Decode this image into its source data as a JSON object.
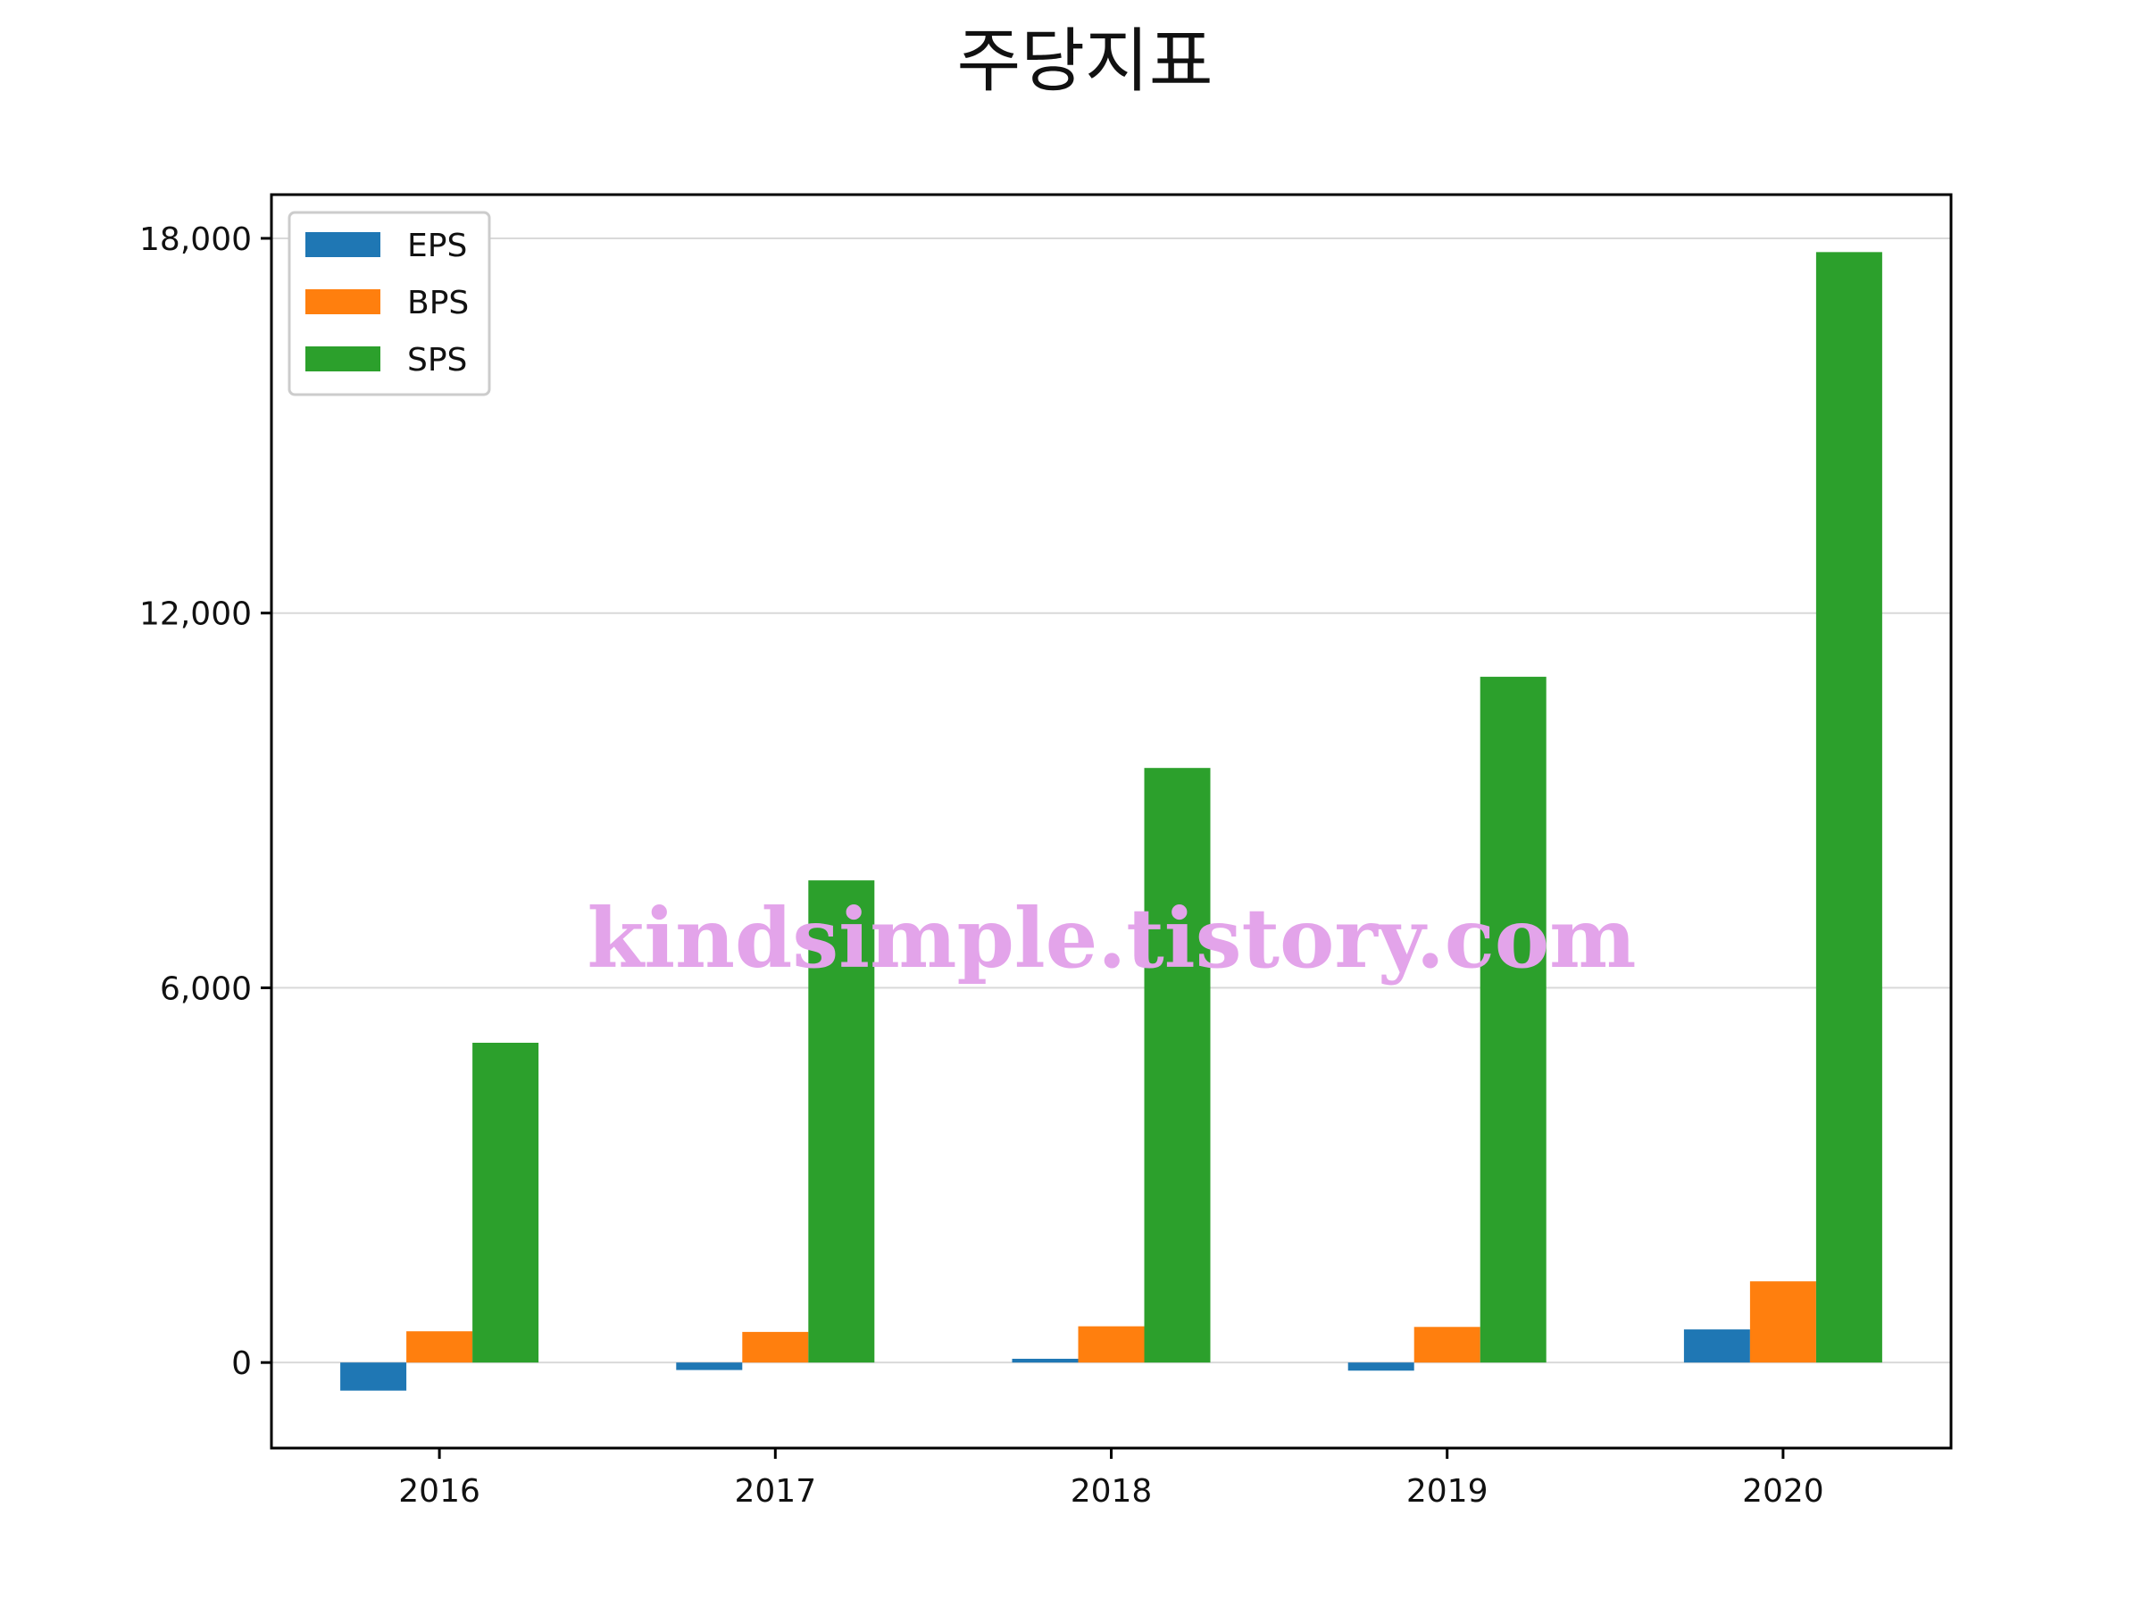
{
  "chart_data": {
    "type": "bar",
    "title": "주당지표",
    "categories": [
      "2016",
      "2017",
      "2018",
      "2019",
      "2020"
    ],
    "series": [
      {
        "name": "EPS",
        "color": "#1f77b4",
        "values": [
          -450,
          -120,
          60,
          -130,
          530
        ]
      },
      {
        "name": "BPS",
        "color": "#ff7f0e",
        "values": [
          500,
          490,
          580,
          570,
          1300
        ]
      },
      {
        "name": "SPS",
        "color": "#2ca02c",
        "values": [
          5120,
          7720,
          9520,
          10980,
          17780
        ]
      }
    ],
    "yticks": [
      0,
      6000,
      12000,
      18000
    ],
    "ytick_labels": [
      "0",
      "6,000",
      "12,000",
      "18,000"
    ],
    "ylim": [
      -1370,
      18700
    ],
    "grid": true,
    "legend_position": "upper-left"
  },
  "watermark": "kindsimple.tistory.com"
}
